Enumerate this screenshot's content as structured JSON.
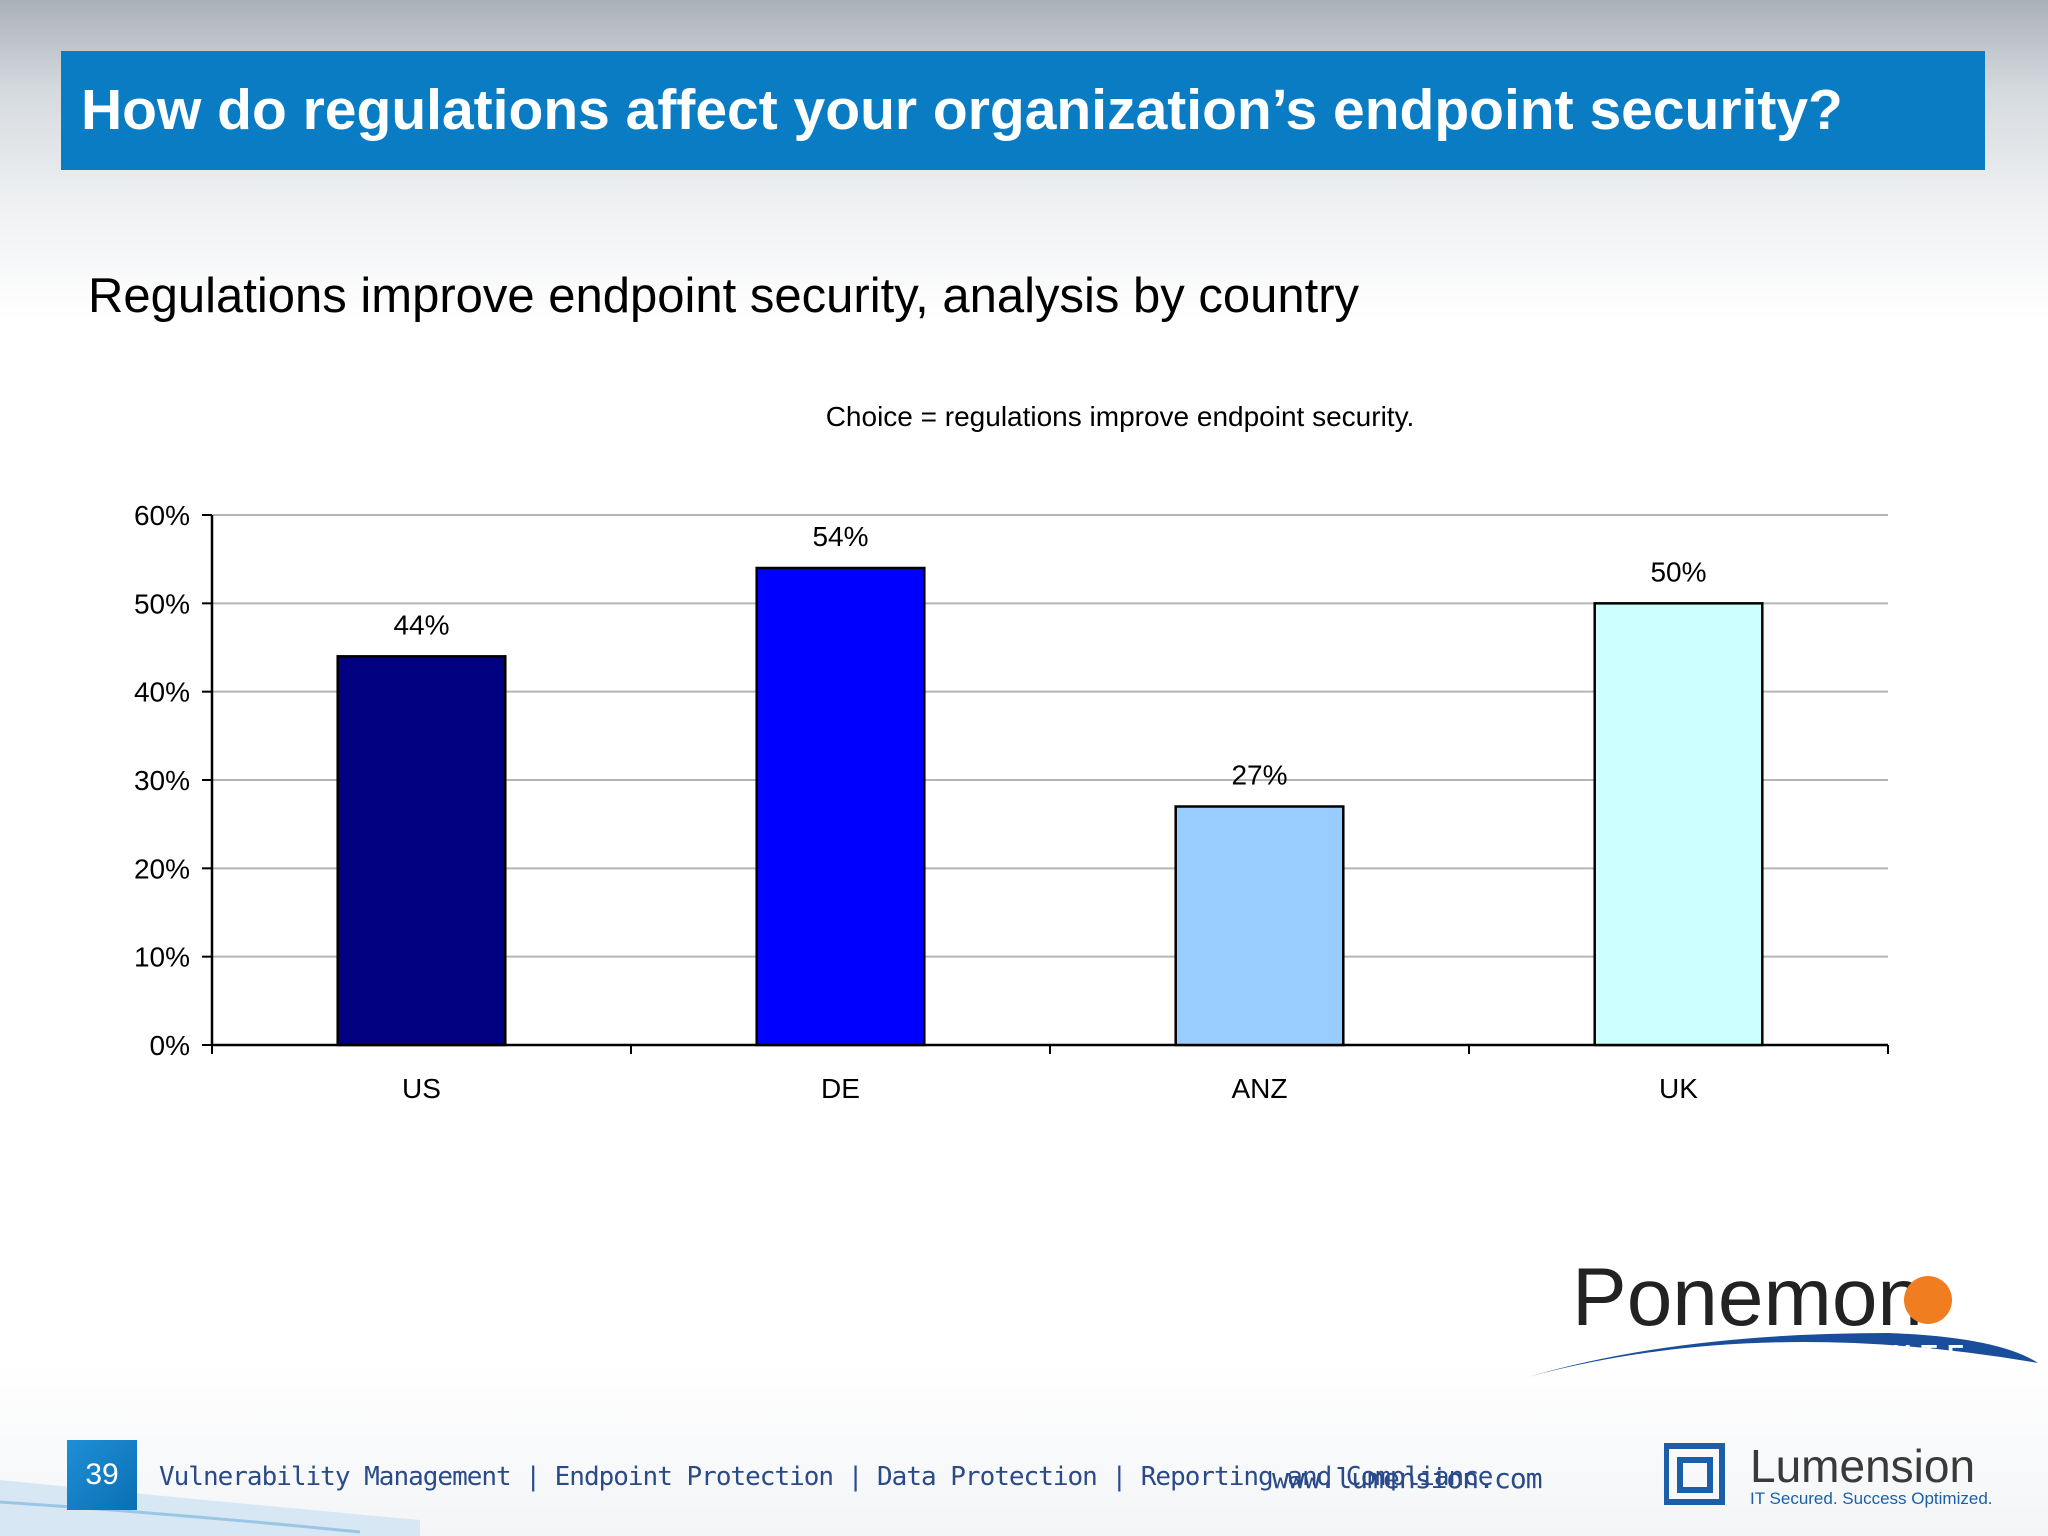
{
  "slide": {
    "title": "How do regulations affect your organization’s endpoint security?",
    "subtitle": "Regulations improve endpoint security, analysis by country",
    "page_number": "39",
    "tagline": "Vulnerability Management | Endpoint Protection | Data Protection | Reporting and Compliance",
    "url": "www.lumension.com",
    "brand_colors": {
      "title_bar": "#0a7cc3",
      "ponemon_orange": "#f07d1f",
      "lumension_blue": "#1a5fa8"
    }
  },
  "logos": {
    "ponemon": {
      "name": "Ponemon",
      "sub": "INSTITUTE"
    },
    "lumension": {
      "name": "Lumension",
      "sub": "IT Secured. Success Optimized."
    }
  },
  "chart_data": {
    "type": "bar",
    "title": "Choice = regulations improve endpoint security.",
    "xlabel": "",
    "ylabel": "",
    "categories": [
      "US",
      "DE",
      "ANZ",
      "UK"
    ],
    "values": [
      44,
      54,
      27,
      50
    ],
    "value_labels": [
      "44%",
      "54%",
      "27%",
      "50%"
    ],
    "bar_colors": [
      "#000080",
      "#0000ff",
      "#99ccff",
      "#ccffff"
    ],
    "ylim": [
      0,
      60
    ],
    "yticks": [
      0,
      10,
      20,
      30,
      40,
      50,
      60
    ],
    "ytick_labels": [
      "0%",
      "10%",
      "20%",
      "30%",
      "40%",
      "50%",
      "60%"
    ],
    "grid": true,
    "legend": "none"
  }
}
